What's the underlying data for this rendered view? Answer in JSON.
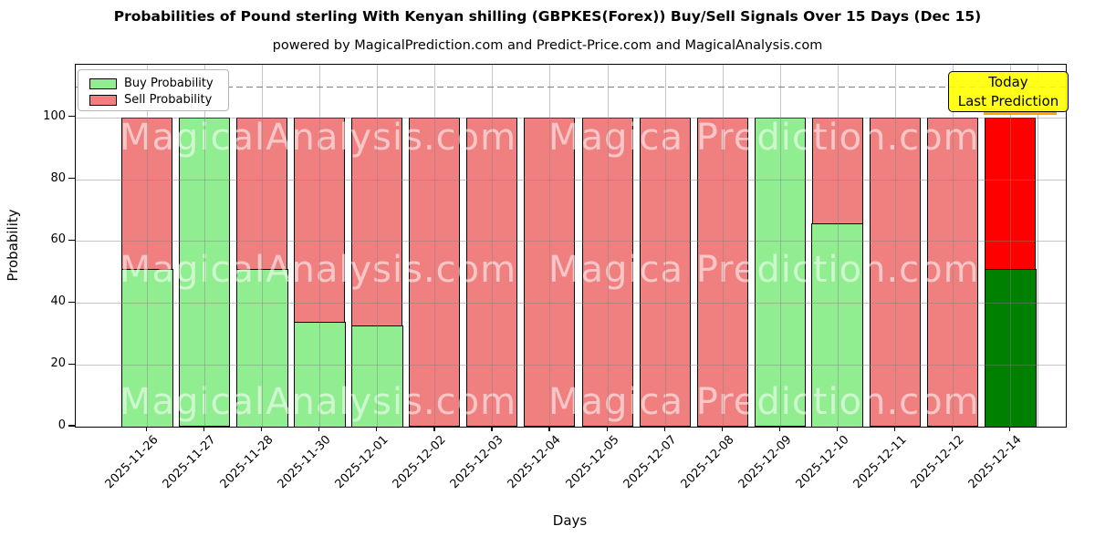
{
  "title": "Probabilities of Pound sterling With Kenyan shilling (GBPKES(Forex)) Buy/Sell Signals Over 15 Days (Dec 15)",
  "subtitle": "powered by MagicalPrediction.com and Predict-Price.com and MagicalAnalysis.com",
  "legend": {
    "items": [
      {
        "label": "Buy Probability",
        "color": "#90EE90"
      },
      {
        "label": "Sell Probability",
        "color": "#F08080"
      }
    ]
  },
  "annotation": {
    "line1": "Today",
    "line2": "Last Prediction",
    "bg_color": "#FFFF00",
    "shadow_color": "#FFA500"
  },
  "watermarks": {
    "left_text": "MagicalAnalysis.com",
    "right_text": "Magica Prediction.com"
  },
  "chart_data": {
    "type": "bar",
    "stacked": true,
    "title": "Probabilities of Pound sterling With Kenyan shilling (GBPKES(Forex)) Buy/Sell Signals Over 15 Days (Dec 15)",
    "xlabel": "Days",
    "ylabel": "Probability",
    "ylim": [
      0,
      117
    ],
    "yticks": [
      0,
      20,
      40,
      60,
      80,
      100
    ],
    "grid": true,
    "legend_position": "upper left",
    "dashed_line_y": 110,
    "categories": [
      "2025-11-26",
      "2025-11-27",
      "2025-11-28",
      "2025-11-30",
      "2025-12-01",
      "2025-12-02",
      "2025-12-03",
      "2025-12-04",
      "2025-12-05",
      "2025-12-07",
      "2025-12-08",
      "2025-12-09",
      "2025-12-10",
      "2025-12-11",
      "2025-12-12",
      "2025-12-14"
    ],
    "series": [
      {
        "name": "Buy Probability",
        "color": "#90EE90",
        "values": [
          51,
          100,
          51,
          34,
          33,
          0,
          0,
          0,
          0,
          0,
          0,
          100,
          66,
          0,
          0,
          51
        ]
      },
      {
        "name": "Sell Probability",
        "color": "#F08080",
        "values": [
          49,
          0,
          49,
          66,
          67,
          100,
          100,
          100,
          100,
          100,
          100,
          0,
          34,
          100,
          100,
          49
        ]
      }
    ],
    "today_bar": {
      "index": 15,
      "buy_color": "#008000",
      "sell_color": "#FF0000"
    }
  }
}
